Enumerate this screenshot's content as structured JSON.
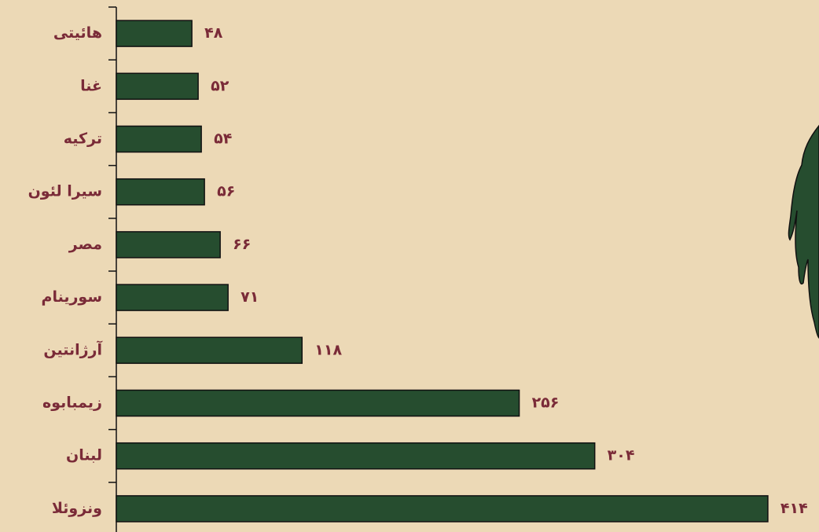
{
  "chart_data": {
    "type": "bar",
    "orientation": "horizontal",
    "categories": [
      "هائیتی",
      "غنا",
      "ترکیه",
      "سیرا لئون",
      "مصر",
      "سورینام",
      "آرژانتین",
      "زیمبابوه",
      "لبنان",
      "ونزوئلا"
    ],
    "values": [
      48,
      52,
      54,
      56,
      66,
      71,
      118,
      256,
      304,
      414
    ],
    "value_labels": [
      "۴۸",
      "۵۲",
      "۵۴",
      "۵۶",
      "۶۶",
      "۷۱",
      "۱۱۸",
      "۲۵۶",
      "۳۰۴",
      "۴۱۴"
    ],
    "color": "#264d2f",
    "xlim": [
      0,
      446
    ]
  }
}
